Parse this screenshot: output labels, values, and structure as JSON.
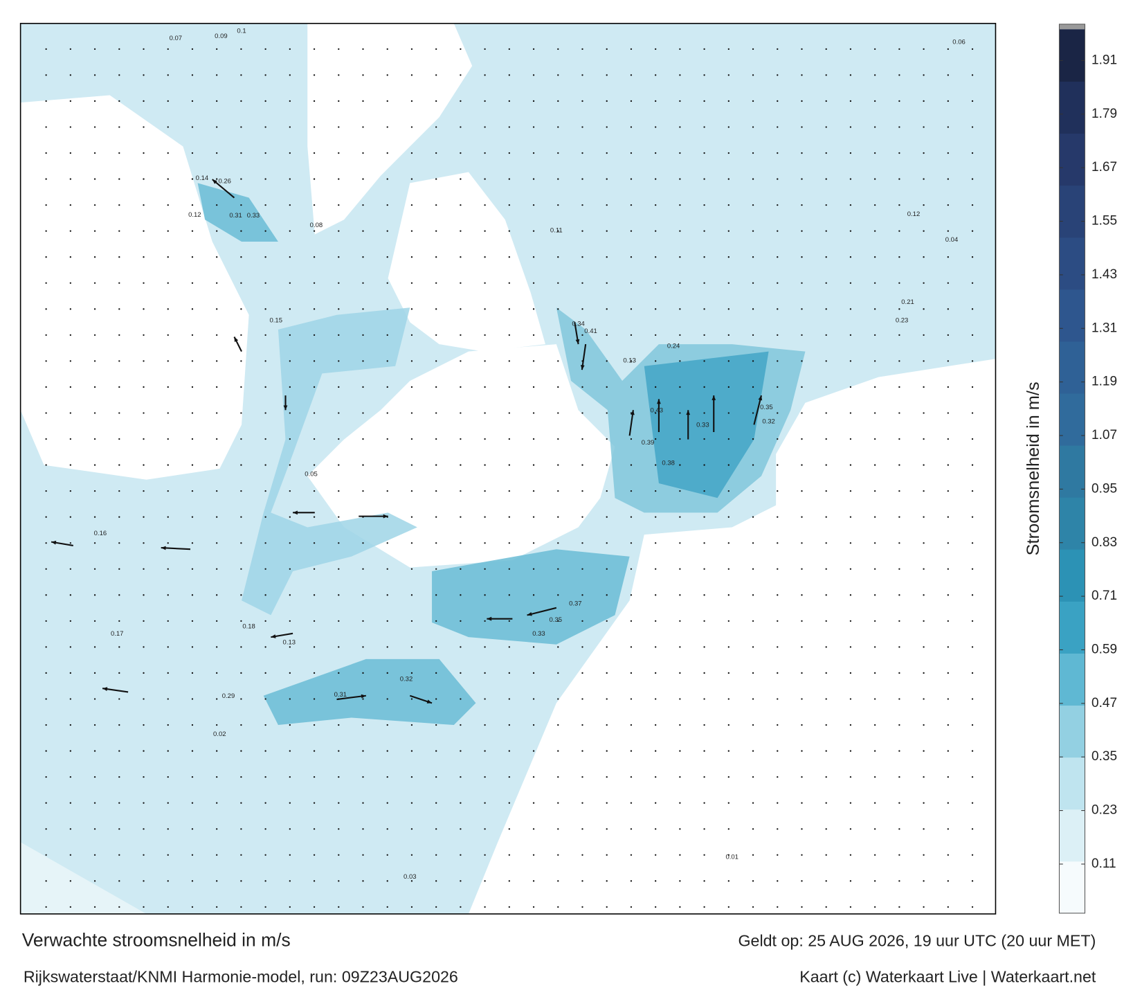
{
  "header": {
    "title": "Verwachte stroomsnelheid in m/s",
    "valid": "Geldt op: 25 AUG 2026, 19 uur UTC (20 uur MET)",
    "model": "Rijkswaterstaat/KNMI Harmonie-model, run: 09Z23AUG2026",
    "credit": "Kaart (c) Waterkaart Live | Waterkaart.net"
  },
  "colorbar": {
    "label": "Stroomsnelheid in m/s",
    "range": [
      0,
      1.98
    ],
    "ticks": [
      0.11,
      0.23,
      0.35,
      0.47,
      0.59,
      0.71,
      0.83,
      0.95,
      1.07,
      1.19,
      1.31,
      1.43,
      1.55,
      1.67,
      1.79,
      1.91
    ],
    "colors": [
      "#f6fbfd",
      "#dcf0f6",
      "#bfe4ef",
      "#93d0e2",
      "#5fb8d3",
      "#3aa2c3",
      "#2c92b5",
      "#2e84a8",
      "#2f79a1",
      "#306b9c",
      "#2f6196",
      "#2e568e",
      "#2c4c83",
      "#294377",
      "#26396a",
      "#20305b",
      "#1a2545"
    ]
  },
  "map": {
    "labels": [
      "0.07",
      "0.09",
      "0.1",
      "0.26",
      "0.31",
      "0.33",
      "0.12",
      "0.14",
      "0.15",
      "0.08",
      "0.41",
      "0.34",
      "0.43",
      "0.39",
      "0.35",
      "0.33",
      "0.32",
      "0.38",
      "0.37",
      "0.35",
      "0.33",
      "0.32",
      "0.29",
      "0.31",
      "0.17",
      "0.16",
      "0.13",
      "0.18",
      "0.05",
      "0.03",
      "0.02",
      "0.06",
      "0.12",
      "0.21",
      "0.23",
      "0.04",
      "0.01",
      "0.11",
      "0.24",
      "0.13"
    ]
  }
}
